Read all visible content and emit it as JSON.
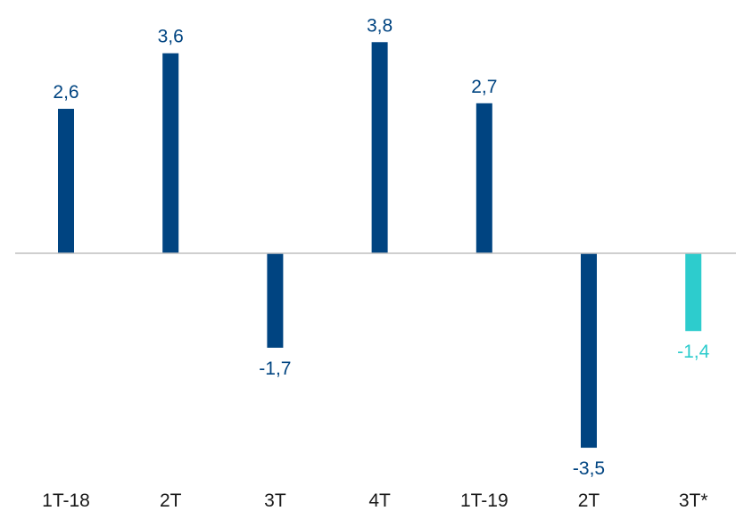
{
  "chart_data": {
    "type": "bar",
    "categories": [
      "1T-18",
      "2T",
      "3T",
      "4T",
      "1T-19",
      "2T",
      "3T*"
    ],
    "values": [
      2.6,
      3.6,
      -1.7,
      3.8,
      2.7,
      -3.5,
      -1.4
    ],
    "value_labels": [
      "2,6",
      "3,6",
      "-1,7",
      "3,8",
      "2,7",
      "-3,5",
      "-1,4"
    ],
    "title": "",
    "xlabel": "",
    "ylabel": "",
    "ylim": [
      -4.0,
      4.0
    ],
    "grid": false,
    "legend": "none",
    "colors": {
      "actual": "#004481",
      "forecast": "#2dcccd",
      "zero_line": "#bfbfbf"
    },
    "forecast_index": [
      6
    ]
  }
}
